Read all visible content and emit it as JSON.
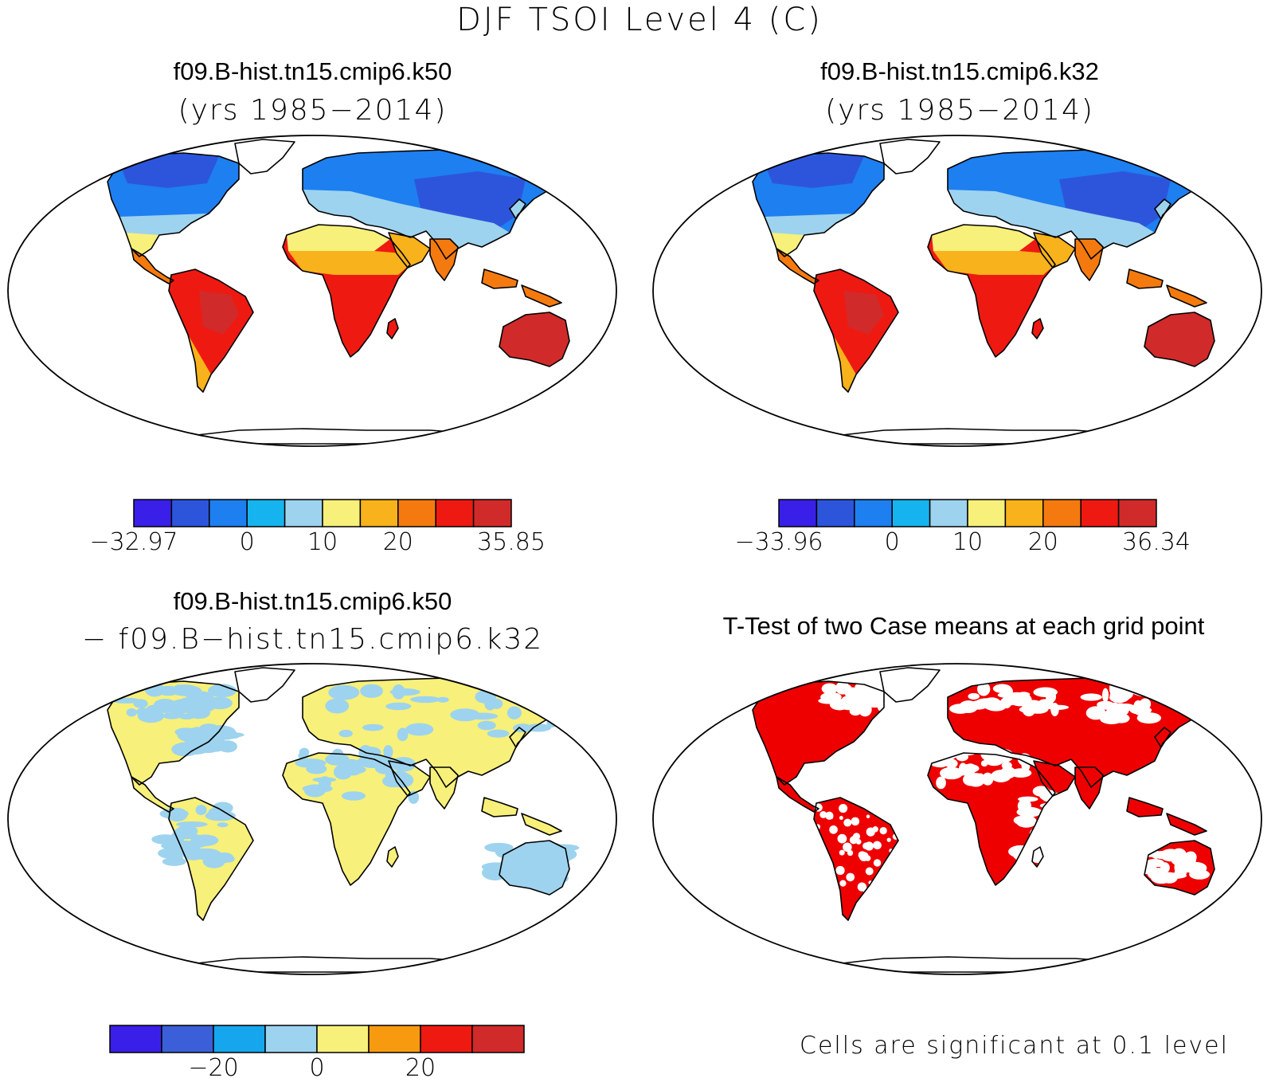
{
  "title": "DJF TSOI Level 4 (C)",
  "panels": {
    "top_left": {
      "title": "f09.B-hist.tn15.cmip6.k50",
      "subtitle": "(yrs 1985−2014)",
      "colorbar": {
        "colors": [
          "#3a1fe8",
          "#2d55dc",
          "#1e7ff0",
          "#16b4ee",
          "#9dd3ee",
          "#f7f07a",
          "#f8b21b",
          "#f47a10",
          "#ee1a12",
          "#d12a2a"
        ],
        "labels": [
          "−32.97",
          "0",
          "10",
          "20",
          "35.85"
        ],
        "label_positions": [
          0,
          3,
          5,
          7,
          10
        ]
      }
    },
    "top_right": {
      "title": "f09.B-hist.tn15.cmip6.k32",
      "subtitle": "(yrs 1985−2014)",
      "colorbar": {
        "colors": [
          "#3a1fe8",
          "#2d55dc",
          "#1e7ff0",
          "#16b4ee",
          "#9dd3ee",
          "#f7f07a",
          "#f8b21b",
          "#f47a10",
          "#ee1a12",
          "#d12a2a"
        ],
        "labels": [
          "−33.96",
          "0",
          "10",
          "20",
          "36.34"
        ],
        "label_positions": [
          0,
          3,
          5,
          7,
          10
        ]
      }
    },
    "bottom_left": {
      "title": "f09.B-hist.tn15.cmip6.k50",
      "subtitle": "− f09.B−hist.tn15.cmip6.k32",
      "colorbar": {
        "colors": [
          "#3a1fe8",
          "#3b5fd8",
          "#16a6ee",
          "#9dd3ee",
          "#f7f07a",
          "#f89a10",
          "#ee1a12",
          "#d12a2a"
        ],
        "labels": [
          "−20",
          "0",
          "20"
        ],
        "label_positions": [
          2,
          4,
          6
        ]
      }
    },
    "bottom_right": {
      "title": "T-Test of two Case means at each grid point",
      "footnote": "Cells are significant at 0.1 level"
    }
  },
  "map_colors": {
    "top": {
      "arctic": "#2d55dc",
      "north": "#1e7ff0",
      "mid": "#9dd3ee",
      "warm": "#f7f07a",
      "hot": "#f8b21b",
      "tropic": "#ee1a12",
      "deep": "#d12a2a",
      "coast": "#f47a10"
    },
    "diff": {
      "base": "#f7f07a",
      "cool": "#9dd3ee"
    },
    "ttest": {
      "sig": "#ee0000"
    }
  }
}
